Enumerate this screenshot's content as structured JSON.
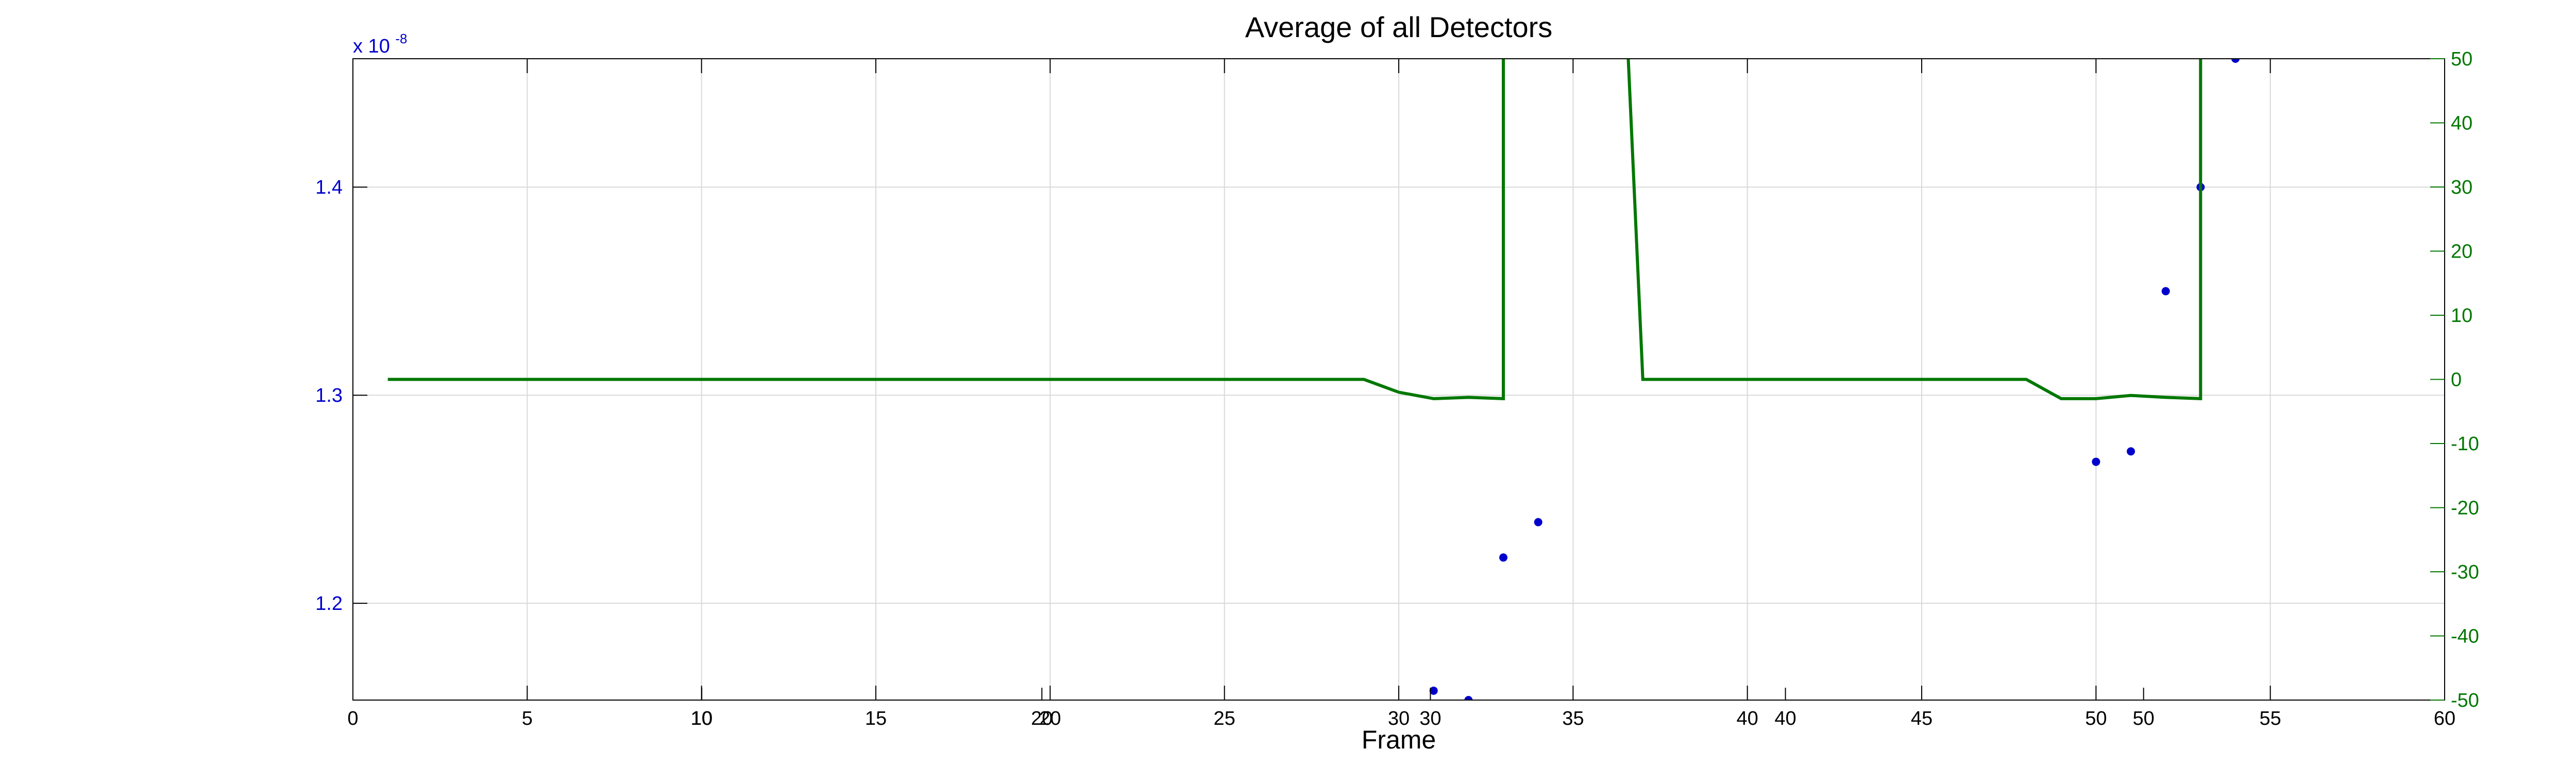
{
  "chart_data": {
    "type": "line",
    "title": "Average of all Detectors",
    "xlabel": "Frame",
    "grid": true,
    "x_axes": [
      {
        "id": "bottom-primary",
        "xlim": [
          0,
          60
        ],
        "ticks": [
          0,
          5,
          10,
          15,
          20,
          25,
          30,
          35,
          40,
          45,
          50,
          55,
          60
        ],
        "tick_labels": [
          "0",
          "5",
          "10",
          "15",
          "20",
          "25",
          "30",
          "35",
          "40",
          "45",
          "50",
          "55",
          "60"
        ]
      },
      {
        "id": "bottom-secondary",
        "xlim": [
          0,
          60
        ],
        "ticks": [
          10,
          20,
          30,
          40,
          50
        ],
        "tick_labels": [
          "10",
          "20",
          "30",
          "40",
          "50"
        ]
      }
    ],
    "y_left": {
      "ylim": [
        1.1535,
        1.4617
      ],
      "ticks": [
        1.2,
        1.3,
        1.4
      ],
      "tick_labels": [
        "1.2",
        "1.3",
        "1.4"
      ],
      "exponent_base": "x 10",
      "exponent_power": "-8",
      "color": "#0000cc"
    },
    "y_right": {
      "ylim": [
        -50,
        50
      ],
      "ticks": [
        -50,
        -40,
        -30,
        -20,
        -10,
        0,
        10,
        20,
        30,
        40,
        50
      ],
      "tick_labels": [
        "-50",
        "-40",
        "-30",
        "-20",
        "-10",
        "0",
        "10",
        "20",
        "30",
        "40",
        "50"
      ],
      "color": "#007700"
    },
    "series": [
      {
        "axis": "left",
        "style": "markers",
        "color": "#0000cc",
        "points": [
          [
            31,
            1.158
          ],
          [
            32,
            1.1535
          ],
          [
            33,
            1.222
          ],
          [
            34,
            1.239
          ],
          [
            50,
            1.268
          ],
          [
            51,
            1.273
          ],
          [
            52,
            1.35
          ],
          [
            53,
            1.4
          ],
          [
            54,
            1.4617
          ]
        ]
      },
      {
        "axis": "right",
        "style": "line",
        "color": "#007700",
        "points": [
          [
            1,
            0
          ],
          [
            2,
            0
          ],
          [
            3,
            0
          ],
          [
            4,
            0
          ],
          [
            5,
            0
          ],
          [
            6,
            0
          ],
          [
            7,
            0
          ],
          [
            8,
            0
          ],
          [
            9,
            0
          ],
          [
            10,
            0
          ],
          [
            11,
            0
          ],
          [
            12,
            0
          ],
          [
            13,
            0
          ],
          [
            14,
            0
          ],
          [
            15,
            0
          ],
          [
            16,
            0
          ],
          [
            17,
            0
          ],
          [
            18,
            0
          ],
          [
            19,
            0
          ],
          [
            20,
            0
          ],
          [
            21,
            0
          ],
          [
            22,
            0
          ],
          [
            23,
            0
          ],
          [
            24,
            0
          ],
          [
            25,
            0
          ],
          [
            26,
            0
          ],
          [
            27,
            0
          ],
          [
            28,
            0
          ],
          [
            29,
            0
          ],
          [
            30,
            -2
          ],
          [
            31,
            -3
          ],
          [
            32,
            -2.8
          ],
          [
            33,
            -3
          ],
          [
            33,
            60
          ],
          [
            36.5,
            60
          ],
          [
            37,
            0
          ],
          [
            38,
            0
          ],
          [
            40,
            0
          ],
          [
            42,
            0
          ],
          [
            44,
            0
          ],
          [
            46,
            0
          ],
          [
            47,
            0
          ],
          [
            48,
            0
          ],
          [
            49,
            -3
          ],
          [
            50,
            -3
          ],
          [
            51,
            -2.5
          ],
          [
            52,
            -2.8
          ],
          [
            53,
            -3
          ],
          [
            53,
            60
          ]
        ]
      }
    ]
  }
}
